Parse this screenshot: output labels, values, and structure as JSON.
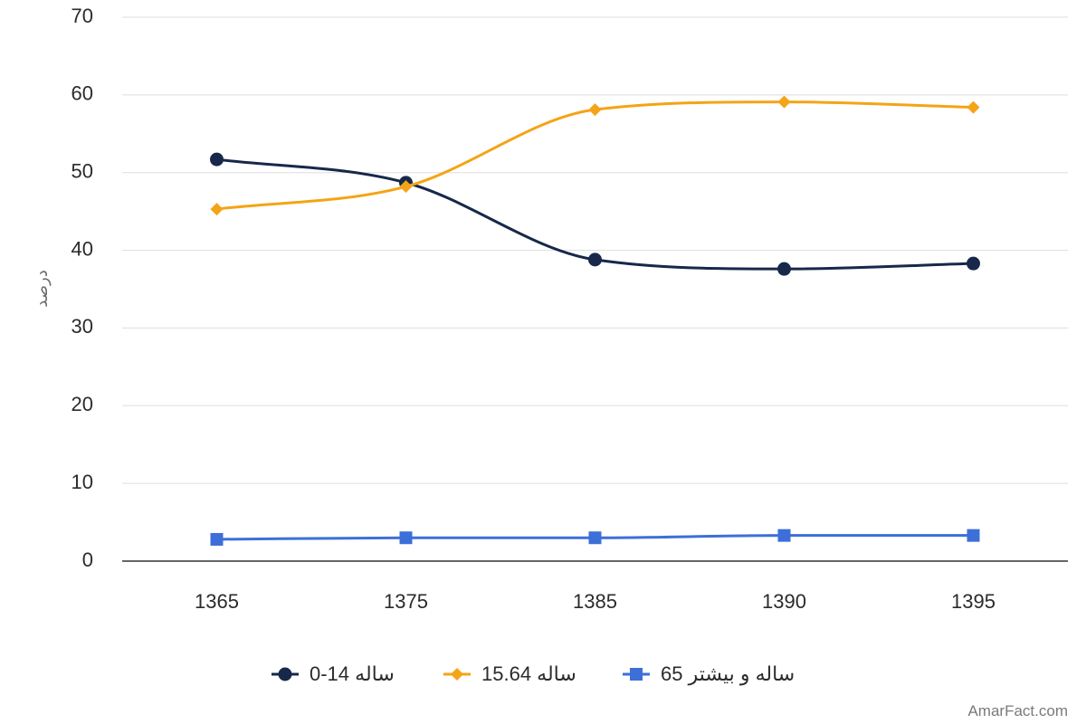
{
  "chart_data": {
    "type": "line",
    "x": [
      "1365",
      "1375",
      "1385",
      "1390",
      "1395"
    ],
    "ylabel": "درصد",
    "ylim": [
      0,
      70
    ],
    "yticks": [
      0,
      10,
      20,
      30,
      40,
      50,
      60,
      70
    ],
    "grid": true,
    "smooth": true,
    "legend": "bottom",
    "series": [
      {
        "name": "0-14 ساله",
        "marker": "circle",
        "color": "#17284a",
        "values": [
          51.7,
          48.7,
          38.8,
          37.6,
          38.3
        ]
      },
      {
        "name": "15.64 ساله",
        "marker": "diamond",
        "color": "#f4a416",
        "values": [
          45.3,
          48.2,
          58.1,
          59.1,
          58.4
        ]
      },
      {
        "name": "65 ساله و بیشتر",
        "marker": "square",
        "color": "#3d6fd8",
        "values": [
          2.8,
          3.0,
          3.0,
          3.3,
          3.3
        ]
      }
    ]
  },
  "watermark": "AmarFact.com"
}
